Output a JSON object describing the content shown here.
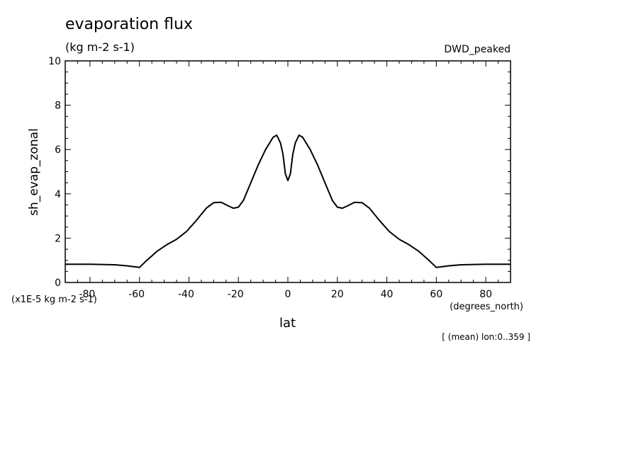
{
  "header": {
    "title": "evaporation flux",
    "units": "(kg m-2 s-1)",
    "dataset": "DWD_peaked"
  },
  "footer": {
    "scale_note": "(x1E-5 kg m-2 s-1)",
    "x_units": "(degrees_north)",
    "note": "[ (mean) lon:0..359 ]"
  },
  "chart_data": {
    "type": "line",
    "xlabel": "lat",
    "ylabel": "sh_evap_zonal",
    "xlim": [
      -90,
      90
    ],
    "ylim": [
      0,
      10
    ],
    "x_ticks": [
      -80,
      -60,
      -40,
      -20,
      0,
      20,
      40,
      60,
      80
    ],
    "y_ticks": [
      0,
      2,
      4,
      6,
      8,
      10
    ],
    "grid": false,
    "series": [
      {
        "x": [
          -90,
          -80,
          -70,
          -65,
          -60,
          -57,
          -53,
          -49,
          -45,
          -41,
          -37,
          -33,
          -30,
          -27,
          -24,
          -22,
          -20,
          -18,
          -15,
          -12,
          -9,
          -6,
          -4.5,
          -3,
          -2,
          -1,
          0,
          1,
          2,
          3,
          4.5,
          6,
          9,
          12,
          15,
          18,
          20,
          22,
          24,
          27,
          30,
          33,
          37,
          41,
          45,
          49,
          53,
          57,
          60,
          65,
          70,
          80,
          90
        ],
        "y": [
          0.82,
          0.82,
          0.8,
          0.75,
          0.68,
          1.0,
          1.4,
          1.7,
          1.95,
          2.3,
          2.8,
          3.35,
          3.6,
          3.62,
          3.45,
          3.35,
          3.4,
          3.7,
          4.5,
          5.3,
          6.0,
          6.55,
          6.65,
          6.3,
          5.8,
          4.9,
          4.6,
          4.9,
          5.8,
          6.3,
          6.65,
          6.55,
          6.0,
          5.3,
          4.5,
          3.7,
          3.4,
          3.35,
          3.45,
          3.62,
          3.6,
          3.35,
          2.8,
          2.3,
          1.95,
          1.7,
          1.4,
          1.0,
          0.68,
          0.75,
          0.8,
          0.82,
          0.82
        ]
      }
    ]
  }
}
